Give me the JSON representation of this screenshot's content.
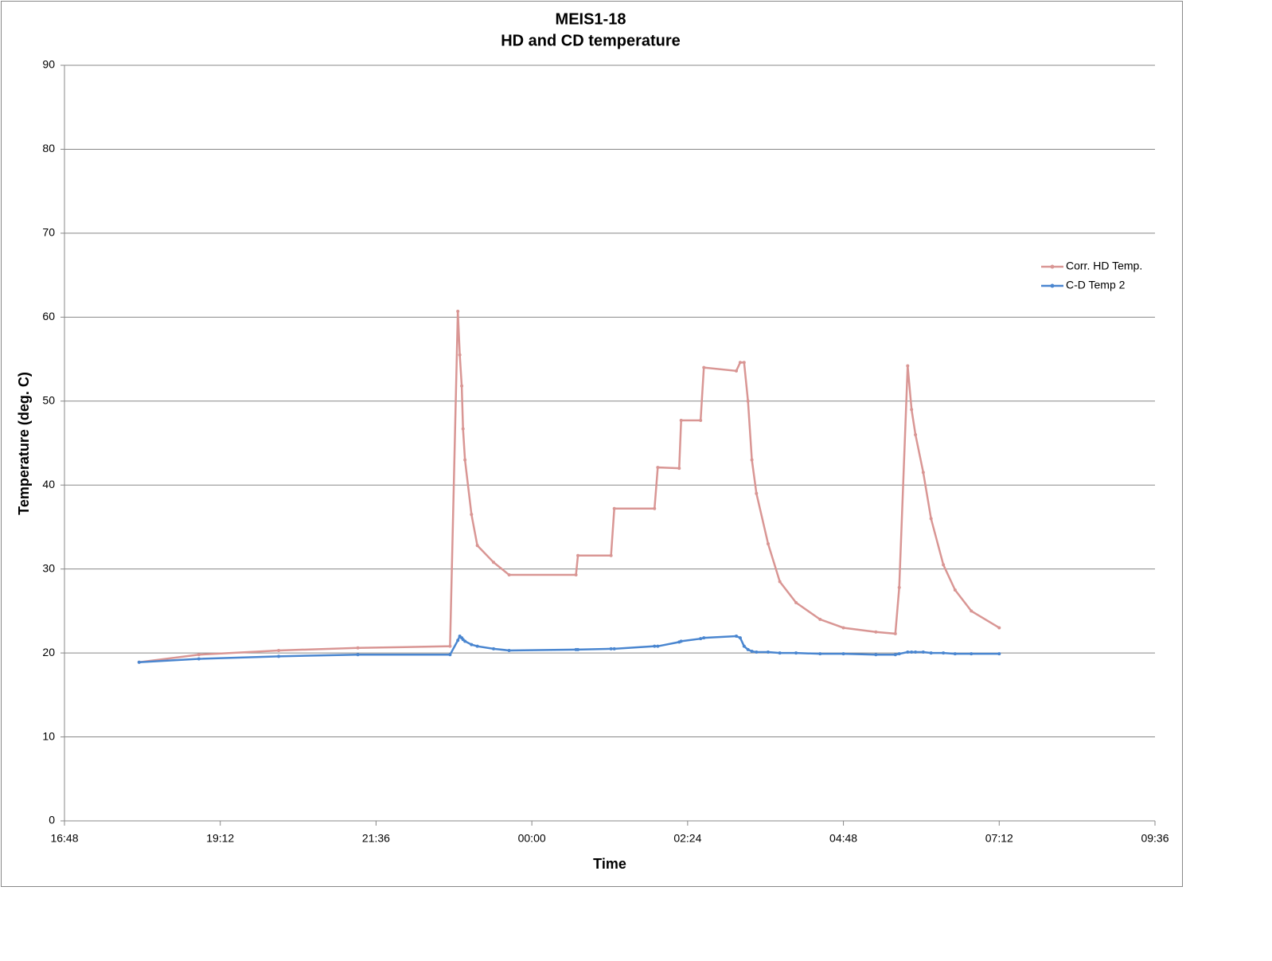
{
  "chart_data": {
    "type": "line",
    "title": "MEIS1-18",
    "subtitle": "HD and CD temperature",
    "x_label": "Time",
    "y_label": "Temperature (deg. C)",
    "x": [
      17.95,
      18.87,
      20.1,
      21.32,
      22.74,
      22.86,
      22.89,
      22.92,
      22.94,
      22.97,
      23.07,
      23.16,
      23.41,
      23.65,
      24.68,
      24.71,
      25.22,
      25.27,
      25.89,
      25.94,
      26.27,
      26.3,
      26.6,
      26.65,
      27.15,
      27.21,
      27.27,
      27.33,
      27.39,
      27.46,
      27.64,
      27.82,
      28.07,
      28.44,
      28.8,
      29.3,
      29.6,
      29.66,
      29.79,
      29.85,
      29.91,
      30.03,
      30.15,
      30.34,
      30.52,
      30.77,
      31.2
    ],
    "series": [
      {
        "name": "Corr. HD Temp.",
        "color": "#d99694",
        "values": [
          18.9,
          19.8,
          20.3,
          20.6,
          20.8,
          60.7,
          55.5,
          51.8,
          46.7,
          43,
          36.5,
          32.8,
          30.8,
          29.3,
          29.3,
          31.6,
          31.6,
          37.2,
          37.2,
          42.1,
          42.0,
          47.7,
          47.7,
          54,
          53.6,
          54.6,
          54.6,
          50,
          43,
          39,
          33,
          28.5,
          26,
          24,
          23,
          22.5,
          22.3,
          27.8,
          54.2,
          49,
          46,
          41.5,
          36,
          30.5,
          27.5,
          25,
          23
        ]
      },
      {
        "name": "C-D Temp 2",
        "color": "#4a86d0",
        "values": [
          18.9,
          19.3,
          19.6,
          19.8,
          19.8,
          21.5,
          22.0,
          21.8,
          21.6,
          21.4,
          21.0,
          20.8,
          20.5,
          20.3,
          20.4,
          20.4,
          20.5,
          20.5,
          20.8,
          20.8,
          21.3,
          21.4,
          21.7,
          21.8,
          22.0,
          21.8,
          20.8,
          20.4,
          20.2,
          20.1,
          20.1,
          20.0,
          20.0,
          19.9,
          19.9,
          19.8,
          19.8,
          19.9,
          20.1,
          20.1,
          20.1,
          20.1,
          20.0,
          20.0,
          19.9,
          19.9,
          19.9
        ]
      }
    ],
    "xlim": [
      16.8,
      33.6
    ],
    "xticks": [
      {
        "value": 16.8,
        "label": "16:48"
      },
      {
        "value": 19.2,
        "label": "19:12"
      },
      {
        "value": 21.6,
        "label": "21:36"
      },
      {
        "value": 24,
        "label": "00:00"
      },
      {
        "value": 26.4,
        "label": "02:24"
      },
      {
        "value": 28.8,
        "label": "04:48"
      },
      {
        "value": 31.2,
        "label": "07:12"
      },
      {
        "value": 33.6,
        "label": "09:36"
      }
    ],
    "ylim": [
      0,
      90
    ],
    "yticks": [
      0,
      10,
      20,
      30,
      40,
      50,
      60,
      70,
      80,
      90
    ],
    "grid": true,
    "legend": "right"
  }
}
